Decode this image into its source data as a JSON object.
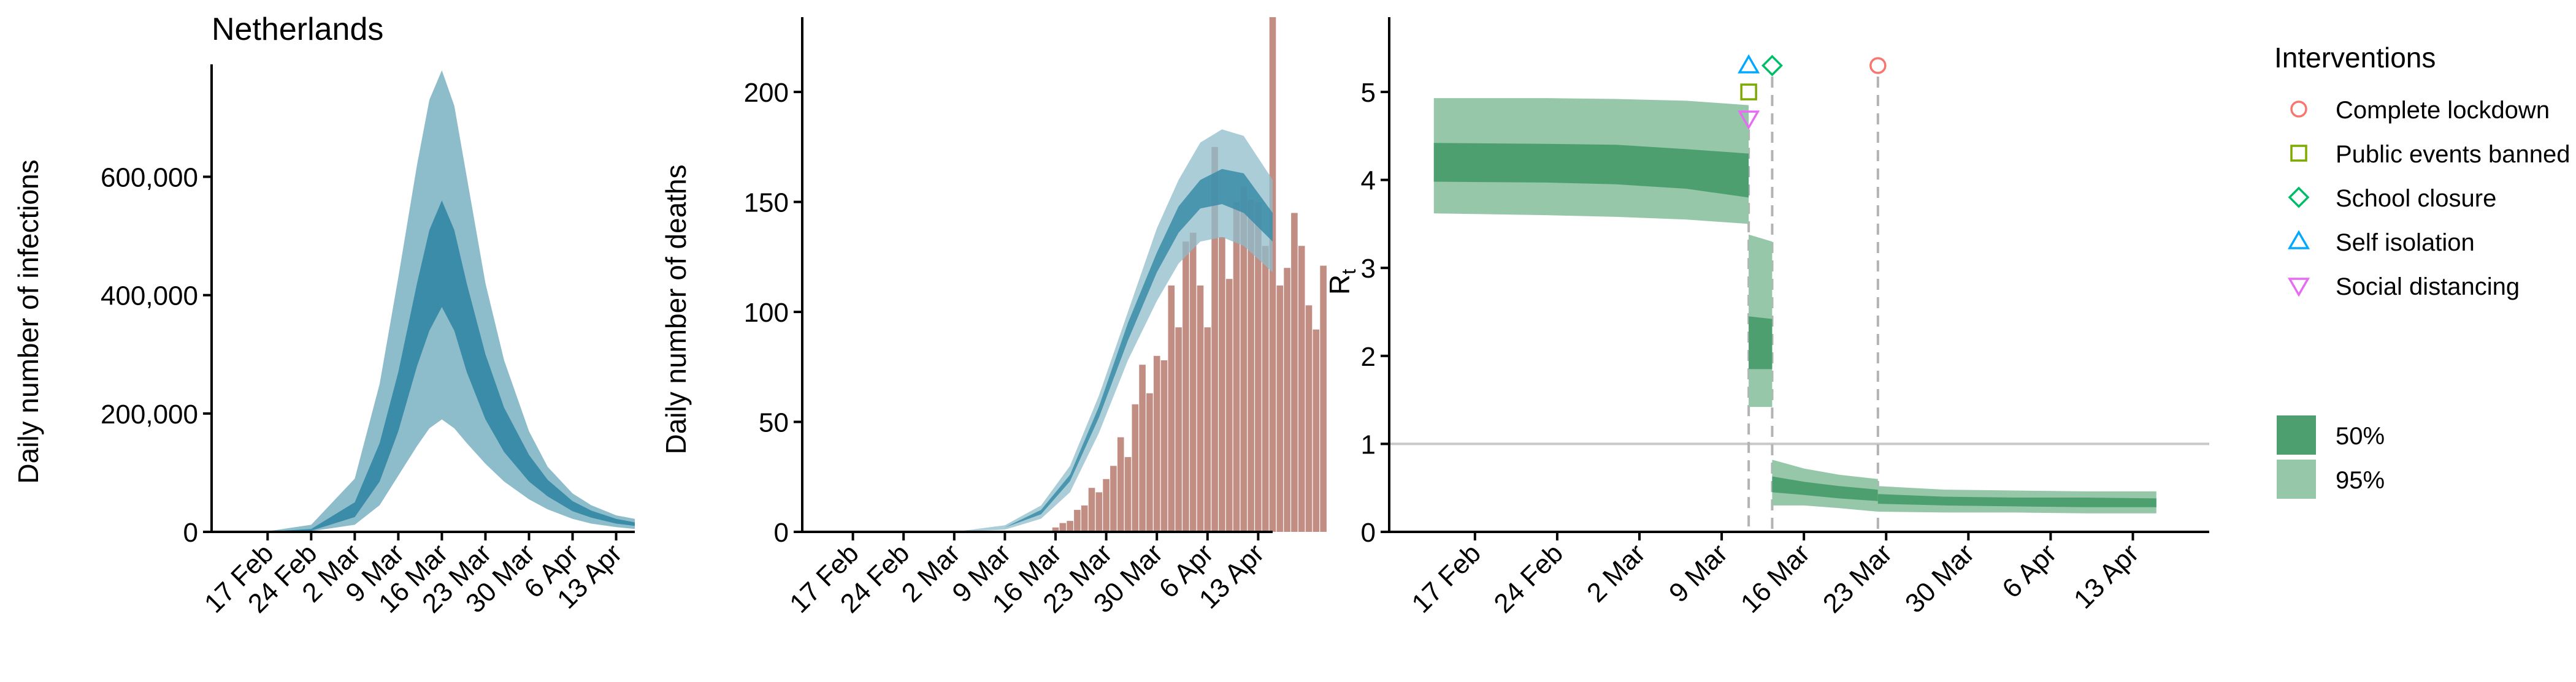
{
  "chart_data": [
    {
      "type": "area",
      "title": "Netherlands",
      "ylabel": "Daily number of infections",
      "xlabel": "",
      "x_tick_labels": [
        "17 Feb",
        "24 Feb",
        "2 Mar",
        "9 Mar",
        "16 Mar",
        "23 Mar",
        "30 Mar",
        "6 Apr",
        "13 Apr"
      ],
      "x_tick_days": [
        0,
        7,
        14,
        21,
        28,
        35,
        42,
        49,
        56
      ],
      "x_range_days": [
        -9,
        59
      ],
      "y_tick_labels": [
        "0",
        "200,000",
        "400,000",
        "600,000"
      ],
      "y_tick_values": [
        0,
        200000,
        400000,
        600000
      ],
      "ylim": [
        0,
        790000
      ],
      "band_95": {
        "days": [
          -9,
          0,
          7,
          14,
          18,
          21,
          24,
          26,
          28,
          30,
          32,
          35,
          38,
          42,
          45,
          49,
          52,
          56,
          59
        ],
        "lower": [
          0,
          0,
          1000,
          12000,
          45000,
          95000,
          145000,
          175000,
          190000,
          175000,
          150000,
          115000,
          85000,
          55000,
          38000,
          22000,
          14000,
          8000,
          5000
        ],
        "upper": [
          0,
          1000,
          12000,
          90000,
          250000,
          430000,
          620000,
          730000,
          780000,
          720000,
          600000,
          420000,
          290000,
          170000,
          110000,
          65000,
          45000,
          28000,
          22000
        ]
      },
      "band_50": {
        "days": [
          -9,
          0,
          7,
          14,
          18,
          21,
          24,
          26,
          28,
          30,
          32,
          35,
          38,
          42,
          45,
          49,
          52,
          56,
          59
        ],
        "lower": [
          0,
          0,
          2000,
          25000,
          85000,
          170000,
          280000,
          340000,
          380000,
          340000,
          270000,
          190000,
          135000,
          85000,
          60000,
          35000,
          24000,
          14000,
          10000
        ],
        "upper": [
          0,
          500,
          5000,
          50000,
          150000,
          270000,
          420000,
          510000,
          560000,
          510000,
          420000,
          300000,
          210000,
          130000,
          88000,
          52000,
          36000,
          22000,
          16000
        ]
      },
      "colors": {
        "band_95": "#8dbccb",
        "band_50": "#3b8ca8"
      }
    },
    {
      "type": "bar",
      "ylabel": "Daily number of deaths",
      "xlabel": "",
      "x_tick_labels": [
        "17 Feb",
        "24 Feb",
        "2 Mar",
        "9 Mar",
        "16 Mar",
        "23 Mar",
        "30 Mar",
        "6 Apr",
        "13 Apr"
      ],
      "x_tick_days": [
        0,
        7,
        14,
        21,
        28,
        35,
        42,
        49,
        56
      ],
      "x_range_days": [
        -7,
        58
      ],
      "y_tick_labels": [
        "0",
        "50",
        "100",
        "150",
        "200"
      ],
      "y_tick_values": [
        0,
        50,
        100,
        150,
        200
      ],
      "ylim": [
        0,
        234
      ],
      "bar_start_day": 28,
      "values": [
        2,
        4,
        5,
        10,
        12,
        20,
        18,
        24,
        30,
        43,
        34,
        58,
        76,
        63,
        80,
        78,
        112,
        93,
        132,
        136,
        112,
        93,
        175,
        134,
        115,
        150,
        157,
        151,
        150,
        130,
        234,
        112,
        120,
        145,
        130,
        103,
        92,
        121
      ],
      "band_95": {
        "days": [
          14,
          21,
          26,
          30,
          34,
          38,
          42,
          45,
          48,
          51,
          54,
          58
        ],
        "lower": [
          0,
          1,
          6,
          18,
          45,
          78,
          105,
          122,
          132,
          134,
          130,
          118
        ],
        "upper": [
          0,
          3,
          12,
          30,
          62,
          100,
          138,
          160,
          177,
          183,
          180,
          160
        ]
      },
      "band_50": {
        "days": [
          14,
          21,
          26,
          30,
          34,
          38,
          42,
          45,
          48,
          51,
          54,
          58
        ],
        "lower": [
          0,
          2,
          8,
          23,
          52,
          87,
          118,
          136,
          147,
          149,
          145,
          132
        ],
        "upper": [
          0,
          2,
          10,
          26,
          57,
          95,
          127,
          148,
          160,
          165,
          163,
          145
        ]
      },
      "colors": {
        "bars": "#c28d83",
        "band_95": "#8dbccb",
        "band_50": "#3b8ca8"
      }
    },
    {
      "type": "area",
      "ylabel": "R",
      "ylabel_subscript": "t",
      "xlabel": "",
      "x_tick_labels": [
        "17 Feb",
        "24 Feb",
        "2 Mar",
        "9 Mar",
        "16 Mar",
        "23 Mar",
        "30 Mar",
        "6 Apr",
        "13 Apr"
      ],
      "x_tick_days": [
        0,
        7,
        14,
        21,
        28,
        35,
        42,
        49,
        56
      ],
      "x_range_days": [
        -7.3,
        62.5
      ],
      "y_tick_labels": [
        "0",
        "1",
        "2",
        "3",
        "4",
        "5"
      ],
      "y_tick_values": [
        0,
        1,
        2,
        3,
        4,
        5
      ],
      "ylim": [
        0,
        5.85
      ],
      "reference_line": 1,
      "intervention_days": [
        23.3,
        25.3,
        34.3
      ],
      "segments": [
        {
          "days": [
            -3.5,
            6,
            12,
            18,
            23.3
          ],
          "lo95": [
            3.62,
            3.6,
            3.58,
            3.55,
            3.5
          ],
          "hi95": [
            4.93,
            4.93,
            4.92,
            4.9,
            4.85
          ],
          "lo50": [
            3.98,
            3.97,
            3.95,
            3.9,
            3.8
          ],
          "hi50": [
            4.42,
            4.41,
            4.4,
            4.35,
            4.3
          ]
        },
        {
          "days": [
            23.3,
            25.3
          ],
          "lo95": [
            1.42,
            1.42
          ],
          "hi95": [
            3.38,
            3.3
          ],
          "lo50": [
            1.85,
            1.85
          ],
          "hi50": [
            2.45,
            2.42
          ]
        },
        {
          "days": [
            25.3,
            28,
            31,
            34.3
          ],
          "lo95": [
            0.3,
            0.3,
            0.27,
            0.23
          ],
          "hi95": [
            0.82,
            0.72,
            0.65,
            0.6
          ],
          "lo50": [
            0.45,
            0.42,
            0.38,
            0.35
          ],
          "hi50": [
            0.63,
            0.57,
            0.52,
            0.48
          ]
        },
        {
          "days": [
            34.3,
            40,
            46,
            52,
            58
          ],
          "lo95": [
            0.23,
            0.22,
            0.22,
            0.21,
            0.21
          ],
          "hi95": [
            0.52,
            0.48,
            0.47,
            0.46,
            0.46
          ],
          "lo50": [
            0.32,
            0.3,
            0.29,
            0.28,
            0.28
          ],
          "hi50": [
            0.43,
            0.4,
            0.39,
            0.39,
            0.38
          ]
        }
      ],
      "markers": [
        {
          "name": "Self isolation",
          "day": 23.3,
          "r": 5.3,
          "shape": "triangle-up",
          "color": "#00a9ff"
        },
        {
          "name": "Public events banned",
          "day": 23.3,
          "r": 5.0,
          "shape": "square",
          "color": "#7caa00"
        },
        {
          "name": "Social distancing",
          "day": 23.3,
          "r": 4.7,
          "shape": "triangle-down",
          "color": "#e76bf3"
        },
        {
          "name": "School closure",
          "day": 25.3,
          "r": 5.3,
          "shape": "diamond",
          "color": "#00be67"
        },
        {
          "name": "Complete lockdown",
          "day": 34.3,
          "r": 5.3,
          "shape": "circle",
          "color": "#f8766d"
        }
      ],
      "legend": {
        "title": "Interventions",
        "placement": "right",
        "entries": [
          {
            "label": "Complete lockdown",
            "shape": "circle",
            "color": "#f8766d"
          },
          {
            "label": "Public events banned",
            "shape": "square",
            "color": "#7caa00"
          },
          {
            "label": "School closure",
            "shape": "diamond",
            "color": "#00be67"
          },
          {
            "label": "Self isolation",
            "shape": "triangle-up",
            "color": "#00a9ff"
          },
          {
            "label": "Social distancing",
            "shape": "triangle-down",
            "color": "#e76bf3"
          }
        ],
        "band_entries": [
          {
            "label": "50%",
            "color": "#4e9f70"
          },
          {
            "label": "95%",
            "color": "#96c7a8"
          }
        ]
      },
      "colors": {
        "band_95": "#96c7a8",
        "band_50": "#4e9f70",
        "reference_line": "#c8c8c8",
        "intervention_lines": "#b3b3b3"
      }
    }
  ]
}
